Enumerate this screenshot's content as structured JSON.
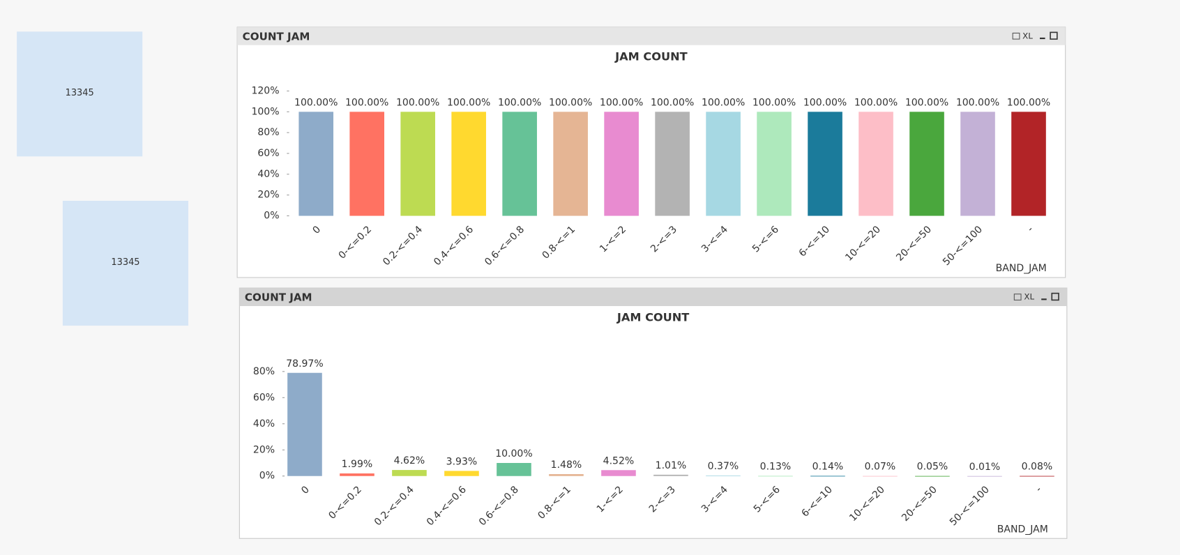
{
  "text_boxes": [
    13345,
    13345
  ],
  "chart_data": [
    {
      "type": "bar",
      "caption": "COUNT JAM",
      "export_label": "XL",
      "title": "JAM COUNT",
      "x_label": "BAND_JAM",
      "categories": [
        "0",
        "0-<=0.2",
        "0.2-<=0.4",
        "0.4-<=0.6",
        "0.6-<=0.8",
        "0.8-<=1",
        "1-<=2",
        "2-<=3",
        "3-<=4",
        "5-<=6",
        "6-<=10",
        "10-<=20",
        "20-<=50",
        "50-<=100",
        "-"
      ],
      "values": [
        100,
        100,
        100,
        100,
        100,
        100,
        100,
        100,
        100,
        100,
        100,
        100,
        100,
        100,
        100
      ],
      "value_labels": [
        "100.00%",
        "100.00%",
        "100.00%",
        "100.00%",
        "100.00%",
        "100.00%",
        "100.00%",
        "100.00%",
        "100.00%",
        "100.00%",
        "100.00%",
        "100.00%",
        "100.00%",
        "100.00%",
        "100.00%"
      ],
      "colors": [
        "#8eabc9",
        "#ff7262",
        "#bddb52",
        "#ffd92f",
        "#66c297",
        "#e5b594",
        "#e88bd0",
        "#b3b3b3",
        "#a6d8e3",
        "#aee9bc",
        "#1b7b9b",
        "#fdbec7",
        "#4aa73d",
        "#c3b1d6",
        "#b22427"
      ],
      "ylim": [
        0,
        120
      ],
      "yticks": [
        {
          "value": 0,
          "label": "0%"
        },
        {
          "value": 20,
          "label": "20%"
        },
        {
          "value": 40,
          "label": "40%"
        },
        {
          "value": 60,
          "label": "60%"
        },
        {
          "value": 80,
          "label": "80%"
        },
        {
          "value": 100,
          "label": "100%"
        },
        {
          "value": 120,
          "label": "120%"
        }
      ]
    },
    {
      "type": "bar",
      "caption": "COUNT JAM",
      "export_label": "XL",
      "title": "JAM COUNT",
      "x_label": "BAND_JAM",
      "categories": [
        "0",
        "0-<=0.2",
        "0.2-<=0.4",
        "0.4-<=0.6",
        "0.6-<=0.8",
        "0.8-<=1",
        "1-<=2",
        "2-<=3",
        "3-<=4",
        "5-<=6",
        "6-<=10",
        "10-<=20",
        "20-<=50",
        "50-<=100",
        "-"
      ],
      "values": [
        78.97,
        1.99,
        4.62,
        3.93,
        10.0,
        1.48,
        4.52,
        1.01,
        0.37,
        0.13,
        0.14,
        0.07,
        0.05,
        0.01,
        0.08
      ],
      "value_labels": [
        "78.97%",
        "1.99%",
        "4.62%",
        "3.93%",
        "10.00%",
        "1.48%",
        "4.52%",
        "1.01%",
        "0.37%",
        "0.13%",
        "0.14%",
        "0.07%",
        "0.05%",
        "0.01%",
        "0.08%"
      ],
      "colors": [
        "#8eabc9",
        "#ff7262",
        "#bddb52",
        "#ffd92f",
        "#66c297",
        "#e5b594",
        "#e88bd0",
        "#b3b3b3",
        "#a6d8e3",
        "#aee9bc",
        "#1b7b9b",
        "#fdbec7",
        "#4aa73d",
        "#c3b1d6",
        "#b22427"
      ],
      "ylim": [
        0,
        80
      ],
      "yticks": [
        {
          "value": 0,
          "label": "0%"
        },
        {
          "value": 20,
          "label": "20%"
        },
        {
          "value": 40,
          "label": "40%"
        },
        {
          "value": 60,
          "label": "60%"
        },
        {
          "value": 80,
          "label": "80%"
        }
      ]
    }
  ]
}
